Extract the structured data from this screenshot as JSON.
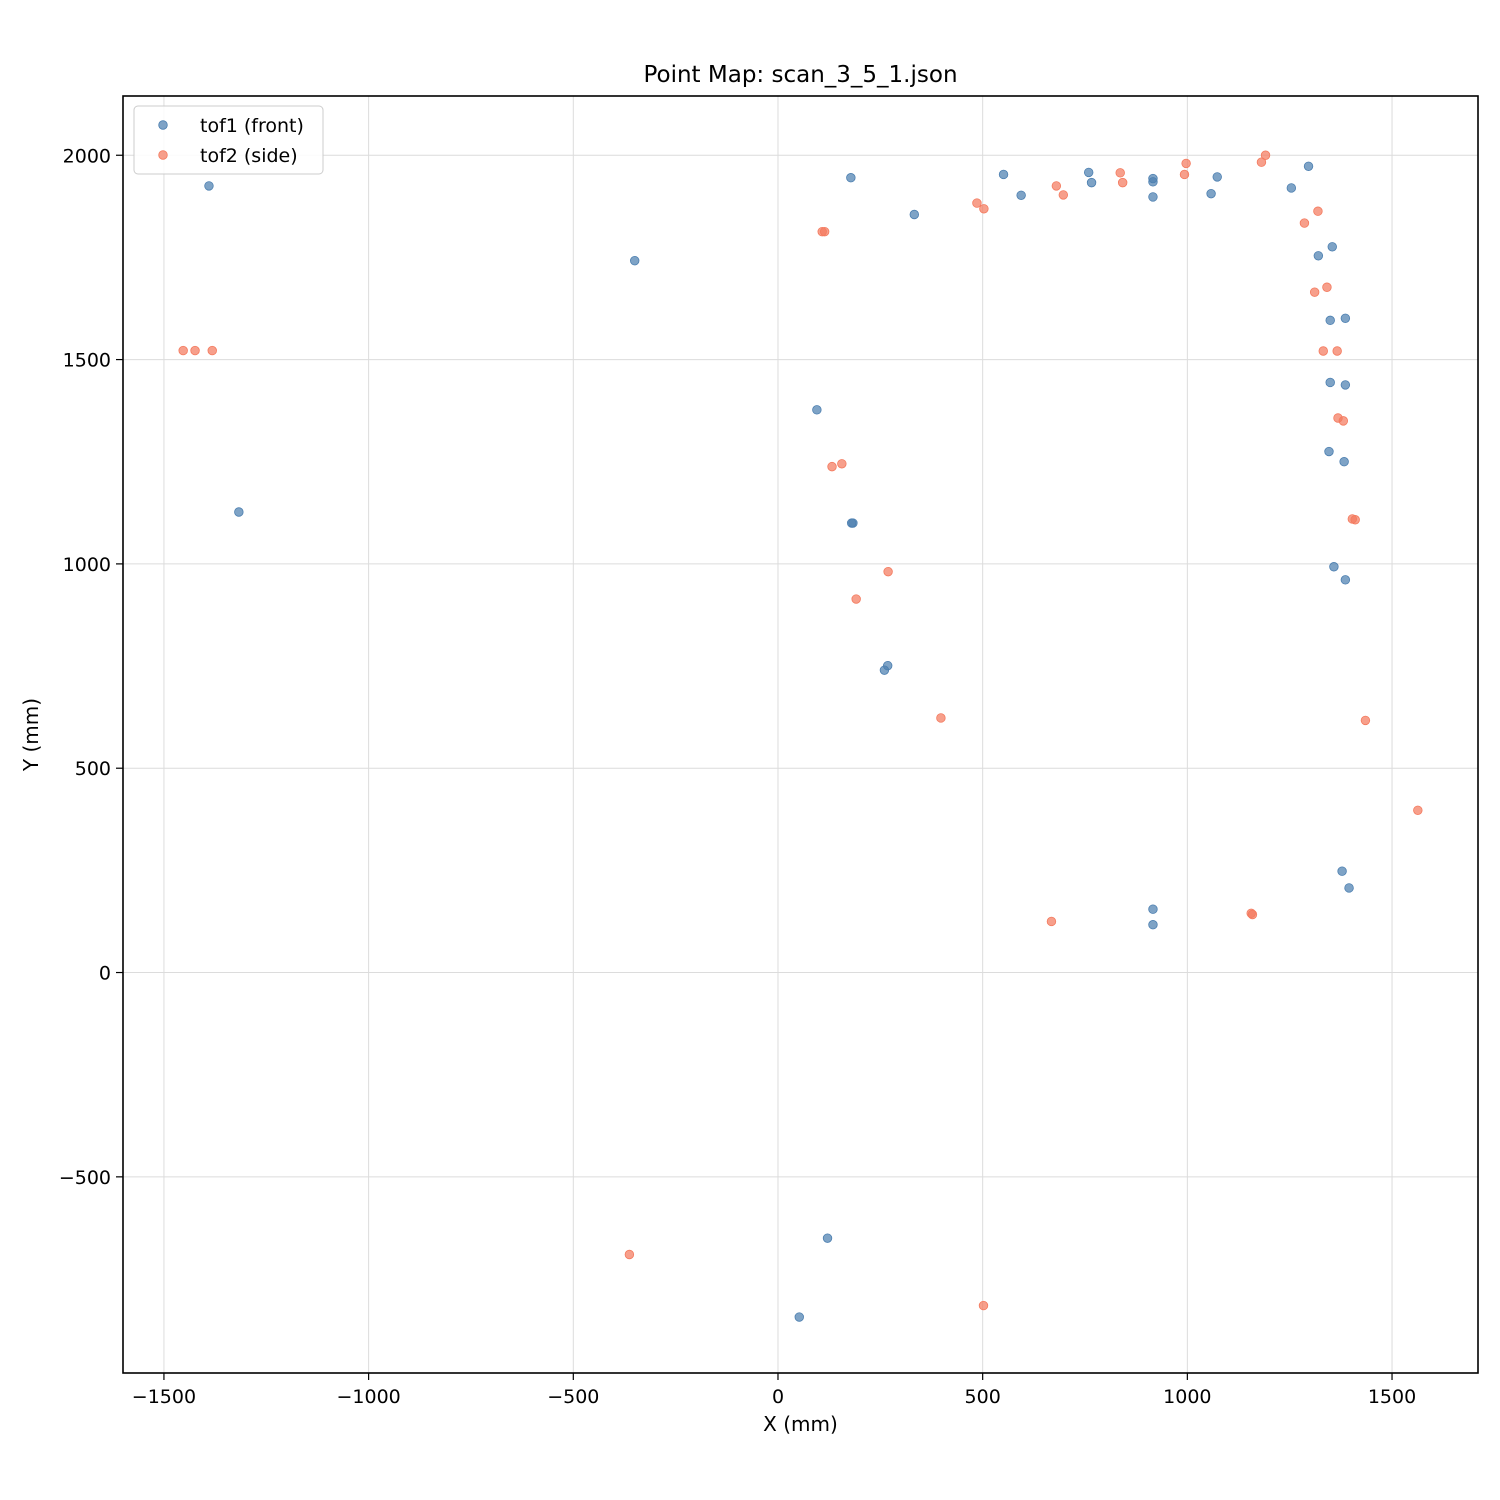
{
  "chart_data": {
    "type": "scatter",
    "title": "Point Map: scan_3_5_1.json",
    "xlabel": "X (mm)",
    "ylabel": "Y (mm)",
    "xlim": [
      -1600,
      1710
    ],
    "ylim": [
      -980,
      2145
    ],
    "xticks": [
      -1500,
      -1000,
      -500,
      0,
      500,
      1000,
      1500
    ],
    "yticks": [
      -500,
      0,
      500,
      1000,
      1500,
      2000
    ],
    "xtick_labels": [
      "−1500",
      "−1000",
      "−500",
      "0",
      "500",
      "1000",
      "1500"
    ],
    "ytick_labels": [
      "−500",
      "0",
      "500",
      "1000",
      "1500",
      "2000"
    ],
    "grid": true,
    "legend_position": "top-left",
    "series": [
      {
        "name": "tof1 (front)",
        "color": "#4c7fb0",
        "points": [
          [
            -1390,
            1925
          ],
          [
            -1317,
            1127
          ],
          [
            -350,
            1742
          ],
          [
            178,
            1945
          ],
          [
            333,
            1855
          ],
          [
            95,
            1377
          ],
          [
            180,
            1100
          ],
          [
            183,
            1100
          ],
          [
            268,
            751
          ],
          [
            260,
            740
          ],
          [
            121,
            -650
          ],
          [
            52,
            -843
          ],
          [
            551,
            1953
          ],
          [
            594,
            1902
          ],
          [
            759,
            1958
          ],
          [
            766,
            1933
          ],
          [
            916,
            1943
          ],
          [
            916,
            1935
          ],
          [
            916,
            1898
          ],
          [
            1058,
            1906
          ],
          [
            1073,
            1947
          ],
          [
            1254,
            1920
          ],
          [
            1296,
            1973
          ],
          [
            1320,
            1754
          ],
          [
            1354,
            1776
          ],
          [
            1349,
            1596
          ],
          [
            1386,
            1601
          ],
          [
            1349,
            1444
          ],
          [
            1386,
            1438
          ],
          [
            1346,
            1275
          ],
          [
            1383,
            1250
          ],
          [
            1358,
            993
          ],
          [
            1386,
            961
          ],
          [
            1378,
            248
          ],
          [
            1395,
            207
          ],
          [
            916,
            155
          ],
          [
            916,
            117
          ]
        ]
      },
      {
        "name": "tof2 (side)",
        "color": "#f47a5e",
        "points": [
          [
            -1453,
            1522
          ],
          [
            -1424,
            1522
          ],
          [
            -1382,
            1522
          ],
          [
            108,
            1813
          ],
          [
            114,
            1813
          ],
          [
            132,
            1238
          ],
          [
            156,
            1245
          ],
          [
            269,
            981
          ],
          [
            191,
            914
          ],
          [
            398,
            623
          ],
          [
            -363,
            -690
          ],
          [
            502,
            -815
          ],
          [
            486,
            1883
          ],
          [
            503,
            1869
          ],
          [
            680,
            1925
          ],
          [
            697,
            1903
          ],
          [
            836,
            1957
          ],
          [
            842,
            1933
          ],
          [
            993,
            1953
          ],
          [
            997,
            1980
          ],
          [
            1181,
            1983
          ],
          [
            1191,
            2000
          ],
          [
            1286,
            1834
          ],
          [
            1319,
            1863
          ],
          [
            1311,
            1665
          ],
          [
            1341,
            1677
          ],
          [
            1332,
            1521
          ],
          [
            1366,
            1521
          ],
          [
            1368,
            1357
          ],
          [
            1381,
            1350
          ],
          [
            1403,
            1110
          ],
          [
            1410,
            1108
          ],
          [
            1435,
            617
          ],
          [
            1563,
            397
          ],
          [
            1156,
            145
          ],
          [
            1159,
            142
          ],
          [
            668,
            125
          ]
        ]
      }
    ]
  }
}
